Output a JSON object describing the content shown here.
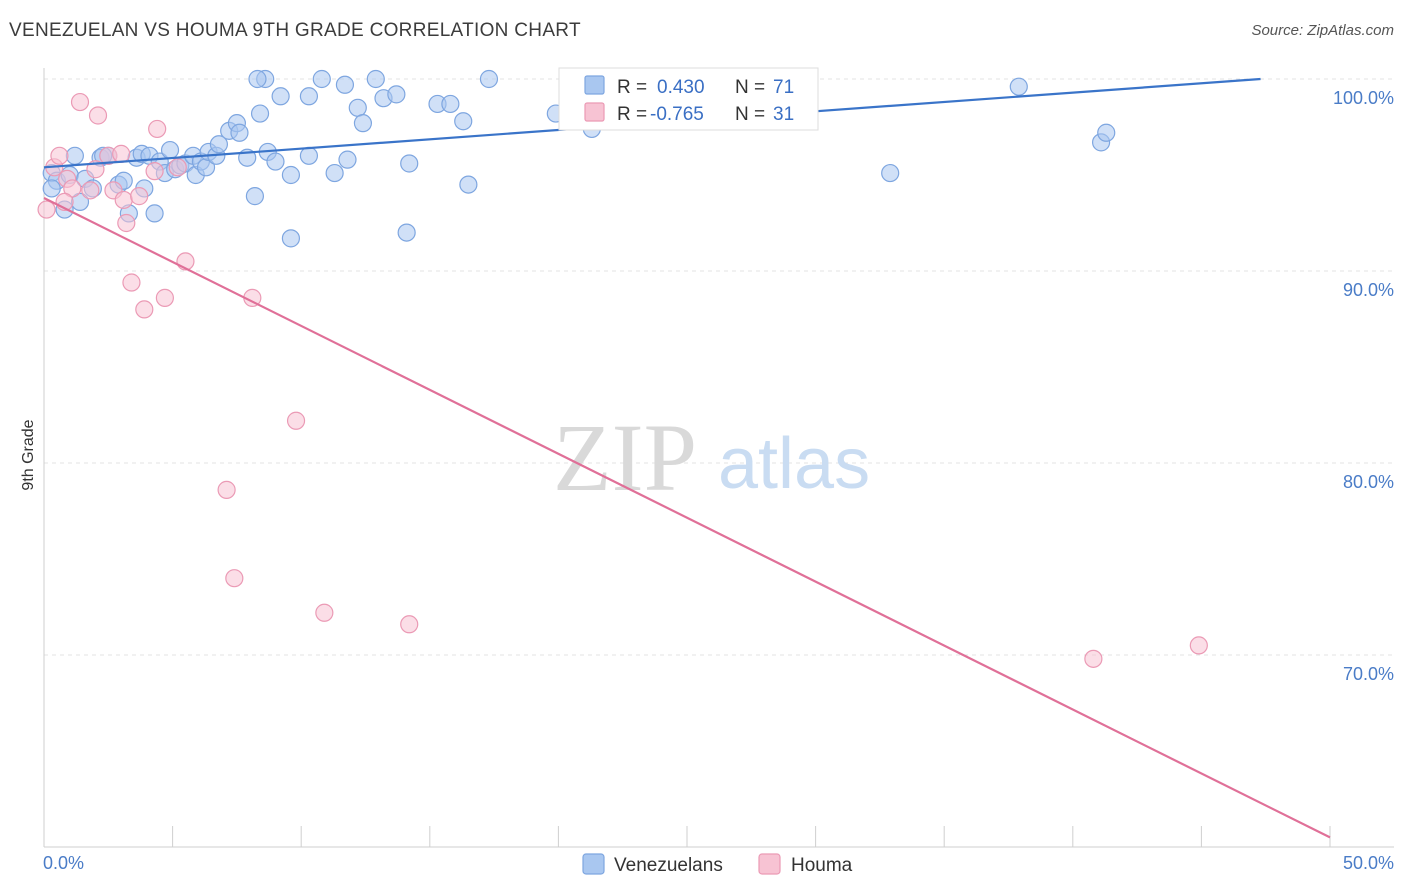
{
  "header": {
    "title": "VENEZUELAN VS HOUMA 9TH GRADE CORRELATION CHART",
    "source": "Source: ZipAtlas.com"
  },
  "watermark": {
    "zip": "ZIP",
    "atlas": "atlas"
  },
  "stats_legend": {
    "rows": [
      {
        "r_label": "R =",
        "r_value": "0.430",
        "n_label": "N =",
        "n_value": "71",
        "color": "#8fb4ea"
      },
      {
        "r_label": "R =",
        "r_value": "-0.765",
        "n_label": "N =",
        "n_value": "31",
        "color": "#f2a7bf"
      }
    ]
  },
  "colors": {
    "venezuelans_fill": "#a9c7f0",
    "venezuelans_stroke": "#7ea6e0",
    "venezuelans_line": "#3a74c9",
    "houma_fill": "#f7c3d3",
    "houma_stroke": "#eb9ab5",
    "houma_line": "#e07098",
    "axis_label": "#4a7cc7",
    "grid": "#e3e3e3"
  },
  "chart_data": {
    "type": "scatter",
    "title": "VENEZUELAN VS HOUMA 9TH GRADE CORRELATION CHART",
    "xlabel": "",
    "ylabel": "9th Grade",
    "xlim": [
      0,
      50
    ],
    "ylim": [
      60.5,
      102
    ],
    "x_tick_labels": [
      "0.0%",
      "50.0%"
    ],
    "y_ticks": [
      70,
      80,
      90,
      100
    ],
    "y_tick_labels": [
      "70.0%",
      "80.0%",
      "90.0%",
      "100.0%"
    ],
    "grid": true,
    "legend_position": "bottom-center",
    "series": [
      {
        "name": "Venezuelans",
        "color": "#a9c7f0",
        "trend": {
          "x": [
            0,
            47.3
          ],
          "y": [
            95.4,
            100.0
          ]
        },
        "points": [
          [
            0.3,
            95.1
          ],
          [
            0.5,
            94.7
          ],
          [
            0.8,
            93.2
          ],
          [
            1.0,
            95.0
          ],
          [
            1.2,
            96.0
          ],
          [
            1.4,
            93.6
          ],
          [
            1.6,
            94.8
          ],
          [
            1.9,
            94.3
          ],
          [
            2.2,
            95.9
          ],
          [
            2.5,
            96.0
          ],
          [
            2.9,
            94.5
          ],
          [
            3.1,
            94.7
          ],
          [
            3.3,
            93.0
          ],
          [
            3.6,
            95.9
          ],
          [
            3.8,
            96.1
          ],
          [
            3.9,
            94.3
          ],
          [
            4.1,
            96.0
          ],
          [
            4.3,
            93.0
          ],
          [
            4.5,
            95.7
          ],
          [
            4.7,
            95.1
          ],
          [
            4.9,
            96.3
          ],
          [
            5.1,
            95.3
          ],
          [
            5.3,
            95.5
          ],
          [
            5.5,
            95.6
          ],
          [
            5.8,
            96.0
          ],
          [
            5.9,
            95.0
          ],
          [
            6.1,
            95.7
          ],
          [
            6.3,
            95.4
          ],
          [
            6.4,
            96.2
          ],
          [
            6.7,
            96.0
          ],
          [
            6.8,
            96.6
          ],
          [
            7.2,
            97.3
          ],
          [
            7.5,
            97.7
          ],
          [
            7.6,
            97.2
          ],
          [
            7.9,
            95.9
          ],
          [
            8.2,
            93.9
          ],
          [
            8.4,
            98.2
          ],
          [
            8.6,
            100.0
          ],
          [
            8.7,
            96.2
          ],
          [
            9.0,
            95.7
          ],
          [
            9.2,
            99.1
          ],
          [
            9.6,
            91.7
          ],
          [
            10.3,
            99.1
          ],
          [
            10.3,
            96.0
          ],
          [
            10.8,
            100.0
          ],
          [
            11.3,
            95.1
          ],
          [
            11.7,
            99.7
          ],
          [
            11.8,
            95.8
          ],
          [
            12.2,
            98.5
          ],
          [
            12.4,
            97.7
          ],
          [
            12.9,
            100.0
          ],
          [
            13.2,
            99.0
          ],
          [
            13.7,
            99.2
          ],
          [
            14.1,
            92.0
          ],
          [
            14.2,
            95.6
          ],
          [
            15.3,
            98.7
          ],
          [
            15.8,
            98.7
          ],
          [
            16.3,
            97.8
          ],
          [
            16.5,
            94.5
          ],
          [
            17.3,
            100.0
          ],
          [
            19.9,
            98.2
          ],
          [
            21.3,
            97.4
          ],
          [
            22.9,
            100.0
          ],
          [
            32.9,
            95.1
          ],
          [
            37.9,
            99.6
          ],
          [
            41.1,
            96.7
          ],
          [
            41.3,
            97.2
          ],
          [
            0.3,
            94.3
          ],
          [
            2.3,
            96.0
          ],
          [
            8.3,
            100.0
          ],
          [
            9.6,
            95.0
          ]
        ]
      },
      {
        "name": "Houma",
        "color": "#f7c3d3",
        "trend": {
          "x": [
            0,
            50
          ],
          "y": [
            93.8,
            60.5
          ]
        },
        "points": [
          [
            0.1,
            93.2
          ],
          [
            0.4,
            95.4
          ],
          [
            0.6,
            96.0
          ],
          [
            0.9,
            94.8
          ],
          [
            1.1,
            94.3
          ],
          [
            1.4,
            98.8
          ],
          [
            1.8,
            94.2
          ],
          [
            2.0,
            95.3
          ],
          [
            2.1,
            98.1
          ],
          [
            2.5,
            96.0
          ],
          [
            2.7,
            94.2
          ],
          [
            3.0,
            96.1
          ],
          [
            3.1,
            93.7
          ],
          [
            3.2,
            92.5
          ],
          [
            3.4,
            89.4
          ],
          [
            3.7,
            93.9
          ],
          [
            3.9,
            88.0
          ],
          [
            4.3,
            95.2
          ],
          [
            4.4,
            97.4
          ],
          [
            4.7,
            88.6
          ],
          [
            5.2,
            95.4
          ],
          [
            5.5,
            90.5
          ],
          [
            7.1,
            78.6
          ],
          [
            7.4,
            74.0
          ],
          [
            8.1,
            88.6
          ],
          [
            9.8,
            82.2
          ],
          [
            10.9,
            72.2
          ],
          [
            14.2,
            71.6
          ],
          [
            40.8,
            69.8
          ],
          [
            44.9,
            70.5
          ],
          [
            0.8,
            93.6
          ]
        ]
      }
    ]
  },
  "bottom_legend": {
    "items": [
      {
        "label": "Venezuelans",
        "color": "#a9c7f0"
      },
      {
        "label": "Houma",
        "color": "#f7c3d3"
      }
    ]
  }
}
